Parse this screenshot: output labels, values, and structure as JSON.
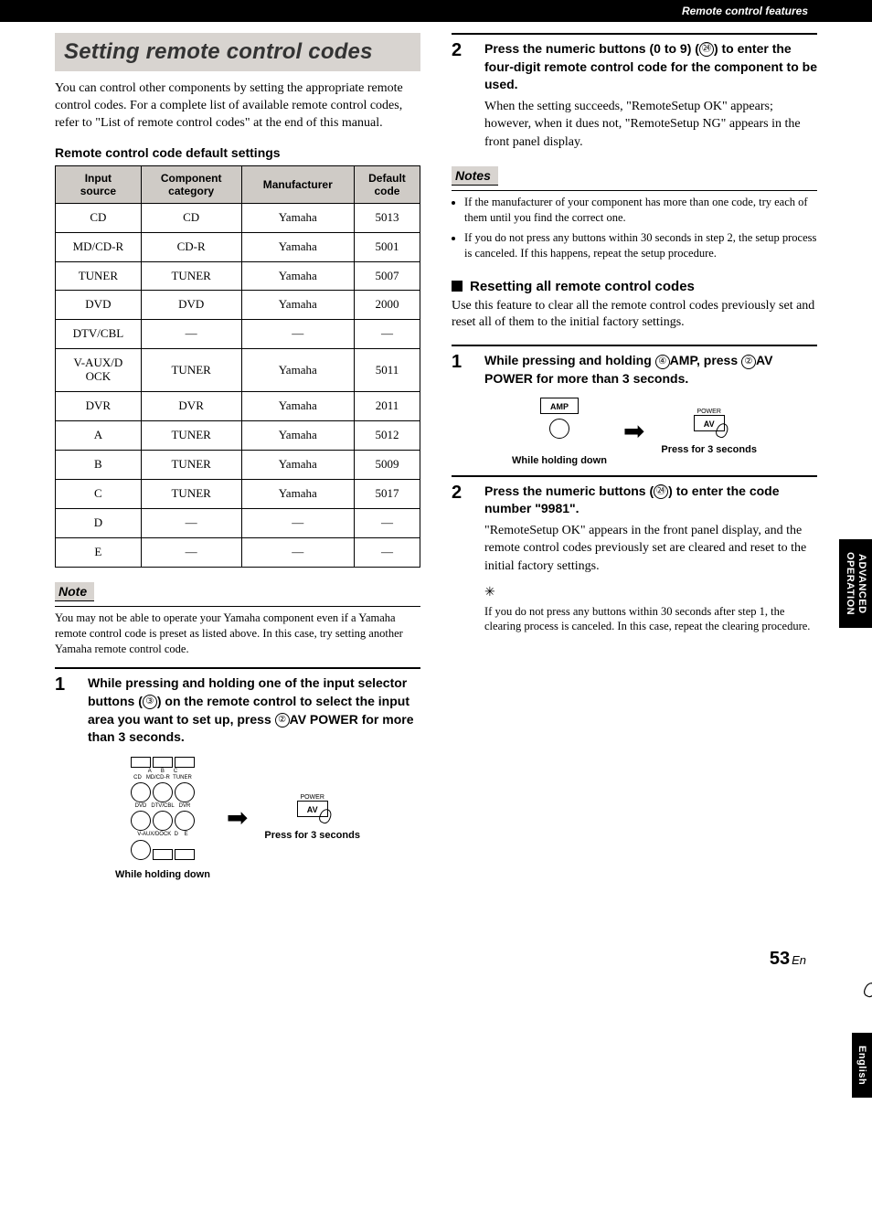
{
  "header_bar": "Remote control features",
  "section_title": "Setting remote control codes",
  "intro_para": "You can control other components by setting the appropriate remote control codes. For a complete list of available remote control codes, refer to \"List of remote control codes\" at the end of this manual.",
  "table_title": "Remote control code default settings",
  "table": {
    "headers": [
      "Input source",
      "Component category",
      "Manufacturer",
      "Default code"
    ],
    "rows": [
      [
        "CD",
        "CD",
        "Yamaha",
        "5013"
      ],
      [
        "MD/CD-R",
        "CD-R",
        "Yamaha",
        "5001"
      ],
      [
        "TUNER",
        "TUNER",
        "Yamaha",
        "5007"
      ],
      [
        "DVD",
        "DVD",
        "Yamaha",
        "2000"
      ],
      [
        "DTV/CBL",
        "—",
        "—",
        "—"
      ],
      [
        "V-AUX/DOCK",
        "TUNER",
        "Yamaha",
        "5011"
      ],
      [
        "DVR",
        "DVR",
        "Yamaha",
        "2011"
      ],
      [
        "A",
        "TUNER",
        "Yamaha",
        "5012"
      ],
      [
        "B",
        "TUNER",
        "Yamaha",
        "5009"
      ],
      [
        "C",
        "TUNER",
        "Yamaha",
        "5017"
      ],
      [
        "D",
        "—",
        "—",
        "—"
      ],
      [
        "E",
        "—",
        "—",
        "—"
      ]
    ]
  },
  "note1_label": "Note",
  "note1_text": "You may not be able to operate your Yamaha component even if a Yamaha remote control code is preset as listed above. In this case, try setting another Yamaha remote control code.",
  "step1_num": "1",
  "step1_text_a": "While pressing and holding one of the input selector buttons (",
  "step1_circle_a": "③",
  "step1_text_b": ") on the remote control to select the input area you want to set up, press ",
  "step1_circle_b": "②",
  "step1_text_c": "AV POWER",
  "step1_text_d": " for more than 3 seconds.",
  "diag1_hold": "While holding down",
  "diag1_power": "POWER",
  "diag1_av": "AV",
  "diag1_press": "Press for 3 seconds",
  "remote_labels": {
    "r1": [
      "A",
      "B",
      "C"
    ],
    "r2": [
      "CD",
      "MD/CD-R",
      "TUNER"
    ],
    "r3": [
      "DVD",
      "DTV/CBL",
      "DVR"
    ],
    "r4": [
      "V-AUX/DOCK",
      "D",
      "E"
    ]
  },
  "step2_num": "2",
  "step2_text_a": "Press the numeric buttons (0 to 9) (",
  "step2_circle": "㉔",
  "step2_text_b": ") to enter the four-digit remote control code for the component to be used.",
  "step2_plain": "When the setting succeeds, \"RemoteSetup OK\" appears; however, when it dues not, \"RemoteSetup NG\" appears in the front panel display.",
  "notes2_label": "Notes",
  "notes2_items": [
    "If the manufacturer of your component has more than one code, try each of them until you find the correct one.",
    "If you do not press any buttons within 30 seconds in step 2, the setup process is canceled. If this happens, repeat the setup procedure."
  ],
  "reset_head": "Resetting all remote control codes",
  "reset_para": "Use this feature to clear all the remote control codes previously set and reset all of them to the initial factory settings.",
  "rstep1_num": "1",
  "rstep1_a": "While pressing and holding ",
  "rstep1_circ1": "④",
  "rstep1_b": "AMP",
  "rstep1_c": ", press ",
  "rstep1_circ2": "②",
  "rstep1_d": "AV POWER",
  "rstep1_e": " for more than 3 seconds.",
  "diag2_amp": "AMP",
  "diag2_hold": "While holding down",
  "diag2_power": "POWER",
  "diag2_av": "AV",
  "diag2_press": "Press for 3 seconds",
  "rstep2_num": "2",
  "rstep2_a": "Press the numeric buttons (",
  "rstep2_circ": "㉔",
  "rstep2_b": ") to enter the code number \"9981\".",
  "rstep2_plain": "\"RemoteSetup OK\" appears in the front panel display, and the remote control codes previously set are cleared and reset to the initial factory settings.",
  "tip_text": "If you do not press any buttons within 30 seconds after step 1, the clearing process is canceled. In this case, repeat the clearing procedure.",
  "side_tab1_a": "ADVANCED",
  "side_tab1_b": "OPERATION",
  "side_tab2": "English",
  "page_num": "53",
  "page_suffix": "En"
}
